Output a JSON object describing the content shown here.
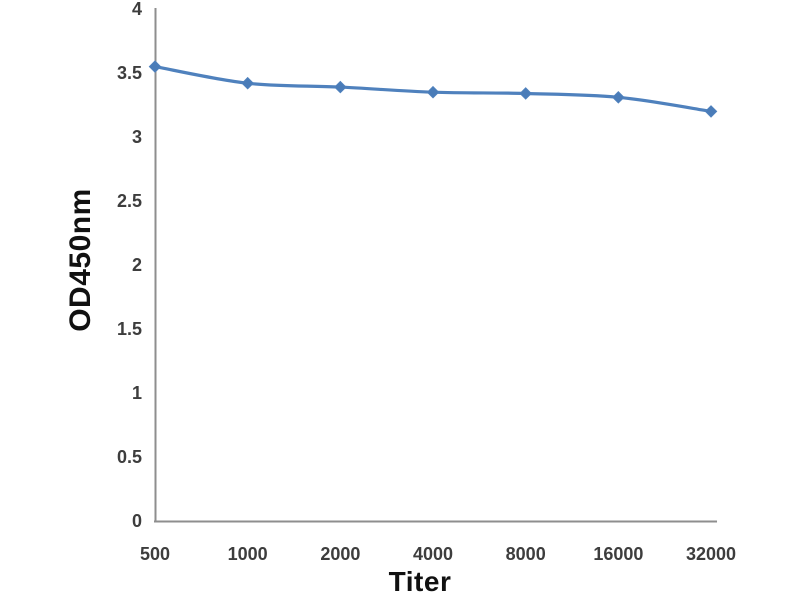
{
  "page": {
    "background_color": "#ffffff"
  },
  "chart_data": {
    "type": "line",
    "title": "",
    "xlabel": "Titer",
    "ylabel": "OD450nm",
    "categories": [
      "500",
      "1000",
      "2000",
      "4000",
      "8000",
      "16000",
      "32000"
    ],
    "series": [
      {
        "name": "OD450nm",
        "values": [
          3.55,
          3.42,
          3.39,
          3.35,
          3.34,
          3.31,
          3.2
        ]
      }
    ],
    "ylim": [
      0,
      4
    ],
    "yticks": [
      "0",
      "0.5",
      "1",
      "1.5",
      "2",
      "2.5",
      "3",
      "3.5",
      "4"
    ],
    "grid": false,
    "legend_position": "none",
    "marker": "diamond",
    "line_smooth": true,
    "colors": {
      "line": "#4f81bd",
      "marker": "#4a7cb8",
      "axis": "#8e8e8e",
      "tick_text": "#3d3d3d",
      "axis_title": "#111111"
    }
  }
}
